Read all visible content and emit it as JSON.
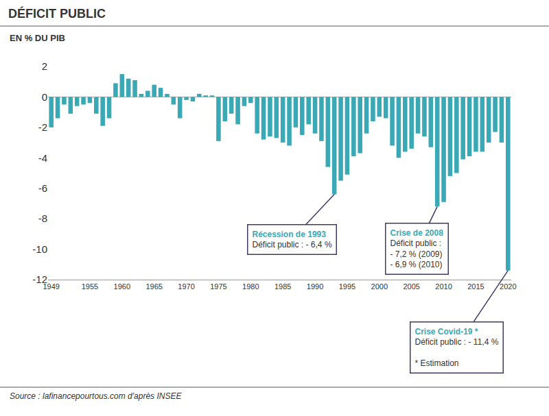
{
  "chart_data": {
    "type": "bar",
    "title": "DÉFICIT PUBLIC",
    "subtitle": "EN % DU PIB",
    "source": "Source : lafinancepourtous.com d'après INSEE",
    "x": [
      1949,
      1950,
      1951,
      1952,
      1953,
      1954,
      1955,
      1956,
      1957,
      1958,
      1959,
      1960,
      1961,
      1962,
      1963,
      1964,
      1965,
      1966,
      1967,
      1968,
      1969,
      1970,
      1971,
      1972,
      1973,
      1974,
      1975,
      1976,
      1977,
      1978,
      1979,
      1980,
      1981,
      1982,
      1983,
      1984,
      1985,
      1986,
      1987,
      1988,
      1989,
      1990,
      1991,
      1992,
      1993,
      1994,
      1995,
      1996,
      1997,
      1998,
      1999,
      2000,
      2001,
      2002,
      2003,
      2004,
      2005,
      2006,
      2007,
      2008,
      2009,
      2010,
      2011,
      2012,
      2013,
      2014,
      2015,
      2016,
      2017,
      2018,
      2019,
      2020
    ],
    "values": [
      -2.0,
      -1.4,
      -0.5,
      -1.1,
      -0.6,
      -0.5,
      -0.4,
      -1.1,
      -1.9,
      -1.4,
      0.9,
      1.5,
      1.2,
      1.1,
      0.2,
      0.4,
      0.8,
      0.6,
      0.2,
      -0.5,
      -1.4,
      -0.2,
      -0.3,
      0.2,
      0.1,
      0.1,
      -2.9,
      -1.6,
      -1.1,
      -1.8,
      -0.6,
      -0.4,
      -2.4,
      -2.8,
      -2.6,
      -2.7,
      -3.0,
      -3.2,
      -2.0,
      -2.5,
      -1.8,
      -2.4,
      -2.9,
      -4.6,
      -6.4,
      -5.5,
      -5.1,
      -3.9,
      -3.7,
      -2.4,
      -1.6,
      -1.3,
      -1.4,
      -3.2,
      -4.0,
      -3.6,
      -3.4,
      -2.4,
      -2.6,
      -3.3,
      -7.2,
      -6.9,
      -5.2,
      -5.0,
      -4.1,
      -3.9,
      -3.6,
      -3.6,
      -3.0,
      -2.3,
      -3.0,
      -11.4
    ],
    "color": "#3aa9b5",
    "xlim": [
      1948.5,
      2020.5
    ],
    "xticks": [
      1949,
      1955,
      1960,
      1965,
      1970,
      1975,
      1980,
      1985,
      1990,
      1995,
      2000,
      2005,
      2010,
      2015,
      2020
    ],
    "ylim": [
      -12,
      2
    ],
    "yticks": [
      2,
      0,
      -2,
      -4,
      -6,
      -8,
      -10,
      -12
    ],
    "grid": false,
    "annotations": [
      {
        "x": 1993,
        "title": "Récession de 1993",
        "lines": [
          "Déficit public : - 6,4 %"
        ]
      },
      {
        "x": 2009,
        "title": "Crise de 2008",
        "lines": [
          "Déficit public :",
          "- 7,2 % (2009)",
          "- 6,9 % (2010)"
        ]
      },
      {
        "x": 2020,
        "title": "Crise Covid-19 *",
        "lines": [
          "Déficit public : - 11,4 %",
          "",
          "* Estimation"
        ]
      }
    ]
  }
}
